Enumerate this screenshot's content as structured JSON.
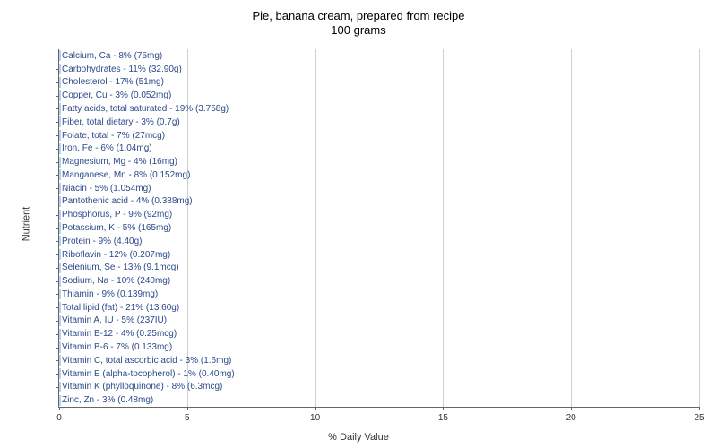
{
  "chart": {
    "type": "bar-horizontal",
    "title_line1": "Pie, banana cream, prepared from recipe",
    "title_line2": "100 grams",
    "title_fontsize": 13,
    "x_axis_title": "% Daily Value",
    "y_axis_title": "Nutrient",
    "axis_title_fontsize": 11,
    "label_fontsize": 10,
    "tick_fontsize": 10,
    "x_min": 0,
    "x_max": 25,
    "x_tick_step": 5,
    "bar_color": "#b7d0ed",
    "label_color": "#2a4a8a",
    "background_color": "#ffffff",
    "grid_color": "#d0d0d0",
    "nutrients": [
      {
        "label": "Calcium, Ca - 8% (75mg)",
        "value": 8
      },
      {
        "label": "Carbohydrates - 11% (32.90g)",
        "value": 11
      },
      {
        "label": "Cholesterol - 17% (51mg)",
        "value": 17
      },
      {
        "label": "Copper, Cu - 3% (0.052mg)",
        "value": 3
      },
      {
        "label": "Fatty acids, total saturated - 19% (3.758g)",
        "value": 19
      },
      {
        "label": "Fiber, total dietary - 3% (0.7g)",
        "value": 3
      },
      {
        "label": "Folate, total - 7% (27mcg)",
        "value": 7
      },
      {
        "label": "Iron, Fe - 6% (1.04mg)",
        "value": 6
      },
      {
        "label": "Magnesium, Mg - 4% (16mg)",
        "value": 4
      },
      {
        "label": "Manganese, Mn - 8% (0.152mg)",
        "value": 8
      },
      {
        "label": "Niacin - 5% (1.054mg)",
        "value": 5
      },
      {
        "label": "Pantothenic acid - 4% (0.388mg)",
        "value": 4
      },
      {
        "label": "Phosphorus, P - 9% (92mg)",
        "value": 9
      },
      {
        "label": "Potassium, K - 5% (165mg)",
        "value": 5
      },
      {
        "label": "Protein - 9% (4.40g)",
        "value": 9
      },
      {
        "label": "Riboflavin - 12% (0.207mg)",
        "value": 12
      },
      {
        "label": "Selenium, Se - 13% (9.1mcg)",
        "value": 13
      },
      {
        "label": "Sodium, Na - 10% (240mg)",
        "value": 10
      },
      {
        "label": "Thiamin - 9% (0.139mg)",
        "value": 9
      },
      {
        "label": "Total lipid (fat) - 21% (13.60g)",
        "value": 21
      },
      {
        "label": "Vitamin A, IU - 5% (237IU)",
        "value": 5
      },
      {
        "label": "Vitamin B-12 - 4% (0.25mcg)",
        "value": 4
      },
      {
        "label": "Vitamin B-6 - 7% (0.133mg)",
        "value": 7
      },
      {
        "label": "Vitamin C, total ascorbic acid - 3% (1.6mg)",
        "value": 3
      },
      {
        "label": "Vitamin E (alpha-tocopherol) - 1% (0.40mg)",
        "value": 1
      },
      {
        "label": "Vitamin K (phylloquinone) - 8% (6.3mcg)",
        "value": 8
      },
      {
        "label": "Zinc, Zn - 3% (0.48mg)",
        "value": 3
      }
    ]
  }
}
